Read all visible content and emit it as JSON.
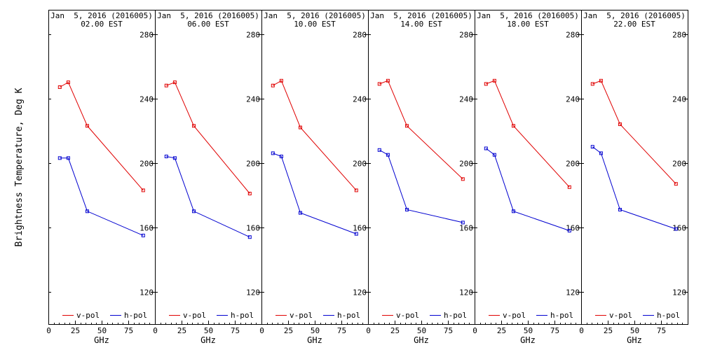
{
  "figure": {
    "ylabel": "Brightness Temperature, Deg K"
  },
  "legend": [
    {
      "name": "v-pol",
      "color": "#e00000"
    },
    {
      "name": "h-pol",
      "color": "#0000d0"
    }
  ],
  "chart_data": [
    {
      "type": "line",
      "title_line1": "Jan  5, 2016 (2016005)",
      "title_line2": "02.00 EST",
      "xlabel": "GHz",
      "xlim": [
        0,
        100
      ],
      "ylim": [
        100,
        295
      ],
      "xticks": [
        "0",
        "25",
        "50",
        "75"
      ],
      "yticks": [
        "120",
        "160",
        "200",
        "240",
        "280"
      ],
      "legend_position": "bottom",
      "series": [
        {
          "name": "v-pol",
          "x": [
            10.7,
            18.7,
            36.5,
            89.0
          ],
          "y": [
            247,
            250,
            223,
            183
          ]
        },
        {
          "name": "h-pol",
          "x": [
            10.7,
            18.7,
            36.5,
            89.0
          ],
          "y": [
            203,
            203,
            170,
            155
          ]
        }
      ]
    },
    {
      "type": "line",
      "title_line1": "Jan  5, 2016 (2016005)",
      "title_line2": "06.00 EST",
      "xlabel": "GHz",
      "xlim": [
        0,
        100
      ],
      "ylim": [
        100,
        295
      ],
      "xticks": [
        "0",
        "25",
        "50",
        "75"
      ],
      "yticks": [
        "120",
        "160",
        "200",
        "240",
        "280"
      ],
      "legend_position": "bottom",
      "series": [
        {
          "name": "v-pol",
          "x": [
            10.7,
            18.7,
            36.5,
            89.0
          ],
          "y": [
            248,
            250,
            223,
            181
          ]
        },
        {
          "name": "h-pol",
          "x": [
            10.7,
            18.7,
            36.5,
            89.0
          ],
          "y": [
            204,
            203,
            170,
            154
          ]
        }
      ]
    },
    {
      "type": "line",
      "title_line1": "Jan  5, 2016 (2016005)",
      "title_line2": "10.00 EST",
      "xlabel": "GHz",
      "xlim": [
        0,
        100
      ],
      "ylim": [
        100,
        295
      ],
      "xticks": [
        "0",
        "25",
        "50",
        "75"
      ],
      "yticks": [
        "120",
        "160",
        "200",
        "240",
        "280"
      ],
      "legend_position": "bottom",
      "series": [
        {
          "name": "v-pol",
          "x": [
            10.7,
            18.7,
            36.5,
            89.0
          ],
          "y": [
            248,
            251,
            222,
            183
          ]
        },
        {
          "name": "h-pol",
          "x": [
            10.7,
            18.7,
            36.5,
            89.0
          ],
          "y": [
            206,
            204,
            169,
            156
          ]
        }
      ]
    },
    {
      "type": "line",
      "title_line1": "Jan  5, 2016 (2016005)",
      "title_line2": "14.00 EST",
      "xlabel": "GHz",
      "xlim": [
        0,
        100
      ],
      "ylim": [
        100,
        295
      ],
      "xticks": [
        "0",
        "25",
        "50",
        "75"
      ],
      "yticks": [
        "120",
        "160",
        "200",
        "240",
        "280"
      ],
      "legend_position": "bottom",
      "series": [
        {
          "name": "v-pol",
          "x": [
            10.7,
            18.7,
            36.5,
            89.0
          ],
          "y": [
            249,
            251,
            223,
            190
          ]
        },
        {
          "name": "h-pol",
          "x": [
            10.7,
            18.7,
            36.5,
            89.0
          ],
          "y": [
            208,
            205,
            171,
            163
          ]
        }
      ]
    },
    {
      "type": "line",
      "title_line1": "Jan  5, 2016 (2016005)",
      "title_line2": "18.00 EST",
      "xlabel": "GHz",
      "xlim": [
        0,
        100
      ],
      "ylim": [
        100,
        295
      ],
      "xticks": [
        "0",
        "25",
        "50",
        "75"
      ],
      "yticks": [
        "120",
        "160",
        "200",
        "240",
        "280"
      ],
      "legend_position": "bottom",
      "series": [
        {
          "name": "v-pol",
          "x": [
            10.7,
            18.7,
            36.5,
            89.0
          ],
          "y": [
            249,
            251,
            223,
            185
          ]
        },
        {
          "name": "h-pol",
          "x": [
            10.7,
            18.7,
            36.5,
            89.0
          ],
          "y": [
            209,
            205,
            170,
            158
          ]
        }
      ]
    },
    {
      "type": "line",
      "title_line1": "Jan  5, 2016 (2016005)",
      "title_line2": "22.00 EST",
      "xlabel": "GHz",
      "xlim": [
        0,
        100
      ],
      "ylim": [
        100,
        295
      ],
      "xticks": [
        "0",
        "25",
        "50",
        "75"
      ],
      "yticks": [
        "120",
        "160",
        "200",
        "240",
        "280"
      ],
      "legend_position": "bottom",
      "series": [
        {
          "name": "v-pol",
          "x": [
            10.7,
            18.7,
            36.5,
            89.0
          ],
          "y": [
            249,
            251,
            224,
            187
          ]
        },
        {
          "name": "h-pol",
          "x": [
            10.7,
            18.7,
            36.5,
            89.0
          ],
          "y": [
            210,
            206,
            171,
            159
          ]
        }
      ]
    }
  ]
}
